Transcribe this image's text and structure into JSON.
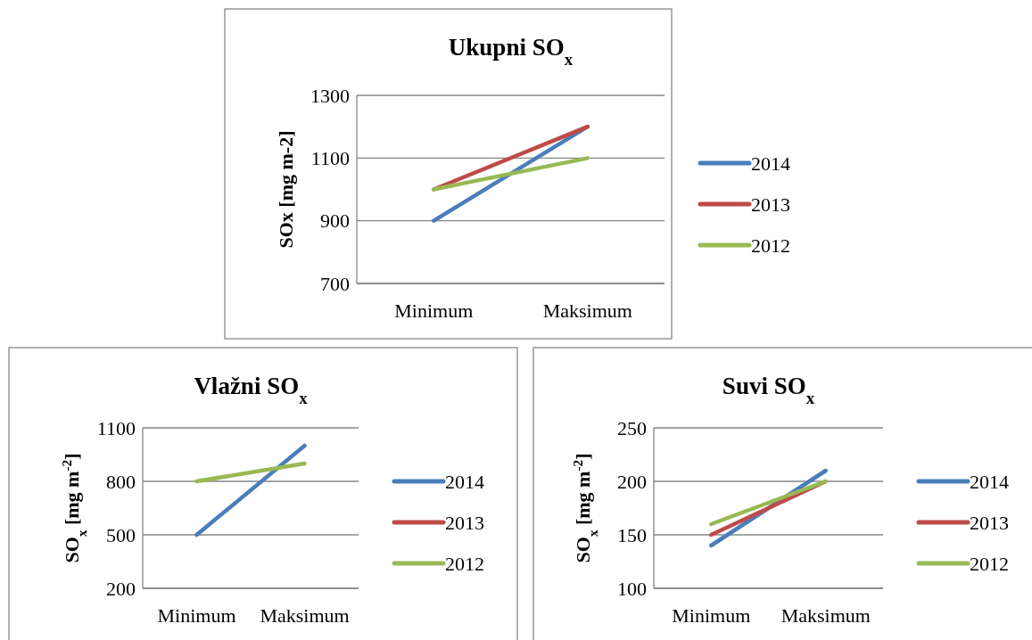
{
  "chart_data": [
    {
      "type": "line",
      "title": "Ukupni SO$_{x}$",
      "ylabel": "SOx [mg m-2]",
      "categories": [
        "Minimum",
        "Maksimum"
      ],
      "ylim": [
        700,
        1300
      ],
      "yticks": [
        700,
        900,
        1100,
        1300
      ],
      "grid": "y",
      "legend": "right",
      "marker": "none",
      "line_style": "solid",
      "series": [
        {
          "name": "2014",
          "color": "#4a7ebb",
          "values": [
            900,
            1200
          ]
        },
        {
          "name": "2013",
          "color": "#be4b48",
          "values": [
            1000,
            1200
          ]
        },
        {
          "name": "2012",
          "color": "#98b954",
          "values": [
            1000,
            1100
          ]
        }
      ]
    },
    {
      "type": "line",
      "title": "Vlažni SO$_{x}$",
      "ylabel": "SO$_{x}$ [mg m$^{-2}$]",
      "categories": [
        "Minimum",
        "Maksimum"
      ],
      "ylim": [
        200,
        1100
      ],
      "yticks": [
        200,
        500,
        800,
        1100
      ],
      "grid": "y",
      "legend": "right",
      "marker": "none",
      "line_style": "solid",
      "series": [
        {
          "name": "2014",
          "color": "#4a7ebb",
          "values": [
            500,
            1000
          ]
        },
        {
          "name": "2013",
          "color": "#be4b48",
          "values": [
            null,
            null
          ]
        },
        {
          "name": "2012",
          "color": "#98b954",
          "values": [
            800,
            900
          ]
        }
      ]
    },
    {
      "type": "line",
      "title": "Suvi SO$_{x}$",
      "ylabel": "SO$_{x}$ [mg m$^{-2}$]",
      "categories": [
        "Minimum",
        "Maksimum"
      ],
      "ylim": [
        100,
        250
      ],
      "yticks": [
        100,
        150,
        200,
        250
      ],
      "grid": "y",
      "legend": "right",
      "marker": "none",
      "line_style": "solid",
      "series": [
        {
          "name": "2014",
          "color": "#4a7ebb",
          "values": [
            140,
            210
          ]
        },
        {
          "name": "2013",
          "color": "#be4b48",
          "values": [
            150,
            200
          ]
        },
        {
          "name": "2012",
          "color": "#98b954",
          "values": [
            160,
            200
          ]
        }
      ]
    }
  ]
}
